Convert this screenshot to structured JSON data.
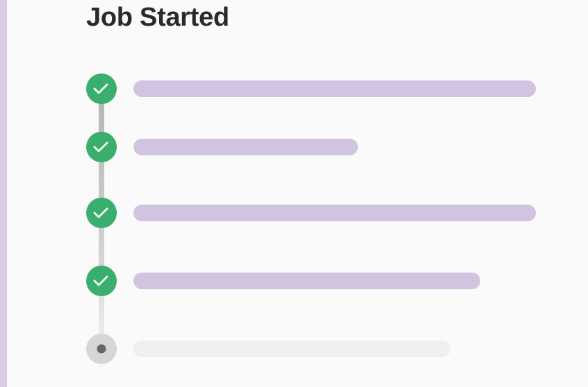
{
  "title": "Job Started"
}
